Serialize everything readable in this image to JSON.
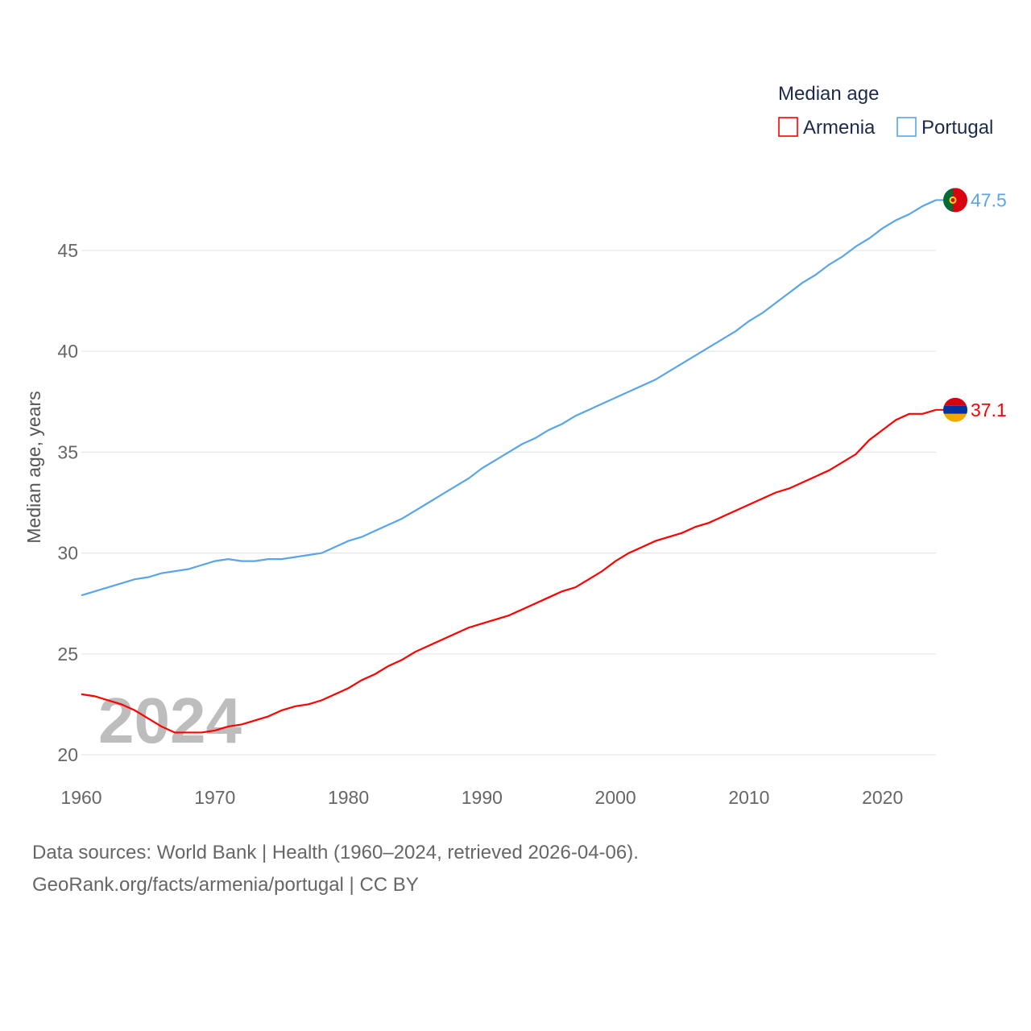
{
  "chart_data": {
    "type": "line",
    "title": "",
    "legend_title": "Median age",
    "legend_position": "top-right",
    "xlabel": "",
    "ylabel": "Median age, years",
    "xlim": [
      1960,
      2024
    ],
    "ylim": [
      20,
      47.5
    ],
    "x_ticks": [
      1960,
      1970,
      1980,
      1990,
      2000,
      2010,
      2020
    ],
    "y_ticks": [
      20,
      25,
      30,
      35,
      40,
      45
    ],
    "grid": true,
    "watermark": "2024",
    "x": [
      1960,
      1961,
      1962,
      1963,
      1964,
      1965,
      1966,
      1967,
      1968,
      1969,
      1970,
      1971,
      1972,
      1973,
      1974,
      1975,
      1976,
      1977,
      1978,
      1979,
      1980,
      1981,
      1982,
      1983,
      1984,
      1985,
      1986,
      1987,
      1988,
      1989,
      1990,
      1991,
      1992,
      1993,
      1994,
      1995,
      1996,
      1997,
      1998,
      1999,
      2000,
      2001,
      2002,
      2003,
      2004,
      2005,
      2006,
      2007,
      2008,
      2009,
      2010,
      2011,
      2012,
      2013,
      2014,
      2015,
      2016,
      2017,
      2018,
      2019,
      2020,
      2021,
      2022,
      2023,
      2024
    ],
    "series": [
      {
        "name": "Armenia",
        "color": "#ff0000",
        "end_label": "37.1",
        "values": [
          23.0,
          22.9,
          22.7,
          22.5,
          22.2,
          21.8,
          21.4,
          21.1,
          21.1,
          21.1,
          21.2,
          21.4,
          21.5,
          21.7,
          21.9,
          22.2,
          22.4,
          22.5,
          22.7,
          23.0,
          23.3,
          23.7,
          24.0,
          24.4,
          24.7,
          25.1,
          25.4,
          25.7,
          26.0,
          26.3,
          26.5,
          26.7,
          26.9,
          27.2,
          27.5,
          27.8,
          28.1,
          28.3,
          28.7,
          29.1,
          29.6,
          30.0,
          30.3,
          30.6,
          30.8,
          31.0,
          31.3,
          31.5,
          31.8,
          32.1,
          32.4,
          32.7,
          33.0,
          33.2,
          33.5,
          33.8,
          34.1,
          34.5,
          34.9,
          35.6,
          36.1,
          36.6,
          36.9,
          36.9,
          37.1
        ]
      },
      {
        "name": "Portugal",
        "color": "#5aa5e8",
        "end_label": "47.5",
        "values": [
          27.9,
          28.1,
          28.3,
          28.5,
          28.7,
          28.8,
          29.0,
          29.1,
          29.2,
          29.4,
          29.6,
          29.7,
          29.6,
          29.6,
          29.7,
          29.7,
          29.8,
          29.9,
          30.0,
          30.3,
          30.6,
          30.8,
          31.1,
          31.4,
          31.7,
          32.1,
          32.5,
          32.9,
          33.3,
          33.7,
          34.2,
          34.6,
          35.0,
          35.4,
          35.7,
          36.1,
          36.4,
          36.8,
          37.1,
          37.4,
          37.7,
          38.0,
          38.3,
          38.6,
          39.0,
          39.4,
          39.8,
          40.2,
          40.6,
          41.0,
          41.5,
          41.9,
          42.4,
          42.9,
          43.4,
          43.8,
          44.3,
          44.7,
          45.2,
          45.6,
          46.1,
          46.5,
          46.8,
          47.2,
          47.5
        ]
      }
    ]
  },
  "footer": {
    "line1": "Data sources: World Bank | Health (1960–2024, retrieved 2026-04-06).",
    "line2": "GeoRank.org/facts/armenia/portugal | CC BY"
  }
}
